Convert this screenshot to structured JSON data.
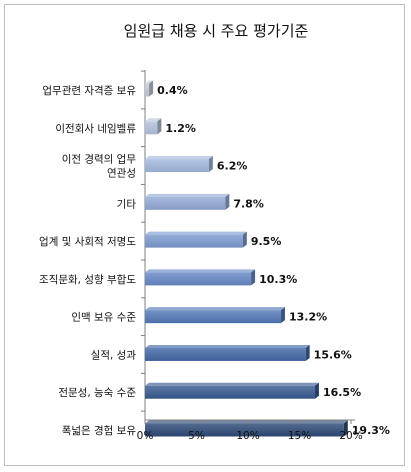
{
  "chart_data": {
    "type": "bar",
    "orientation": "horizontal",
    "title": "임원급 채용 시 주요 평가기준",
    "categories": [
      "업무관련 자격증 보유",
      "이전회사 네임벨류",
      [
        "이전 경력의 업무",
        "연관성"
      ],
      "기타",
      "업계 및 사회적 저명도",
      "조직문화, 성향 부합도",
      "인맥 보유 수준",
      "실적, 성과",
      "전문성, 능숙 수준",
      "폭넓은 경험 보유"
    ],
    "values": [
      0.4,
      1.2,
      6.2,
      7.8,
      9.5,
      10.3,
      13.2,
      15.6,
      16.5,
      19.3
    ],
    "value_labels": [
      "0.4%",
      "1.2%",
      "6.2%",
      "7.8%",
      "9.5%",
      "10.3%",
      "13.2%",
      "15.6%",
      "16.5%",
      "19.3%"
    ],
    "xlim": [
      0,
      20
    ],
    "x_ticks": [
      "0%",
      "5%",
      "10%",
      "15%",
      "20%"
    ],
    "grid": false,
    "legend": "none",
    "bar_colors": [
      "#c3cbd9",
      "#b3c3db",
      "#a3b9de",
      "#92abd8",
      "#7c9bd1",
      "#6689c6",
      "#5479b8",
      "#4468a6",
      "#385a91",
      "#2e4a78"
    ]
  }
}
